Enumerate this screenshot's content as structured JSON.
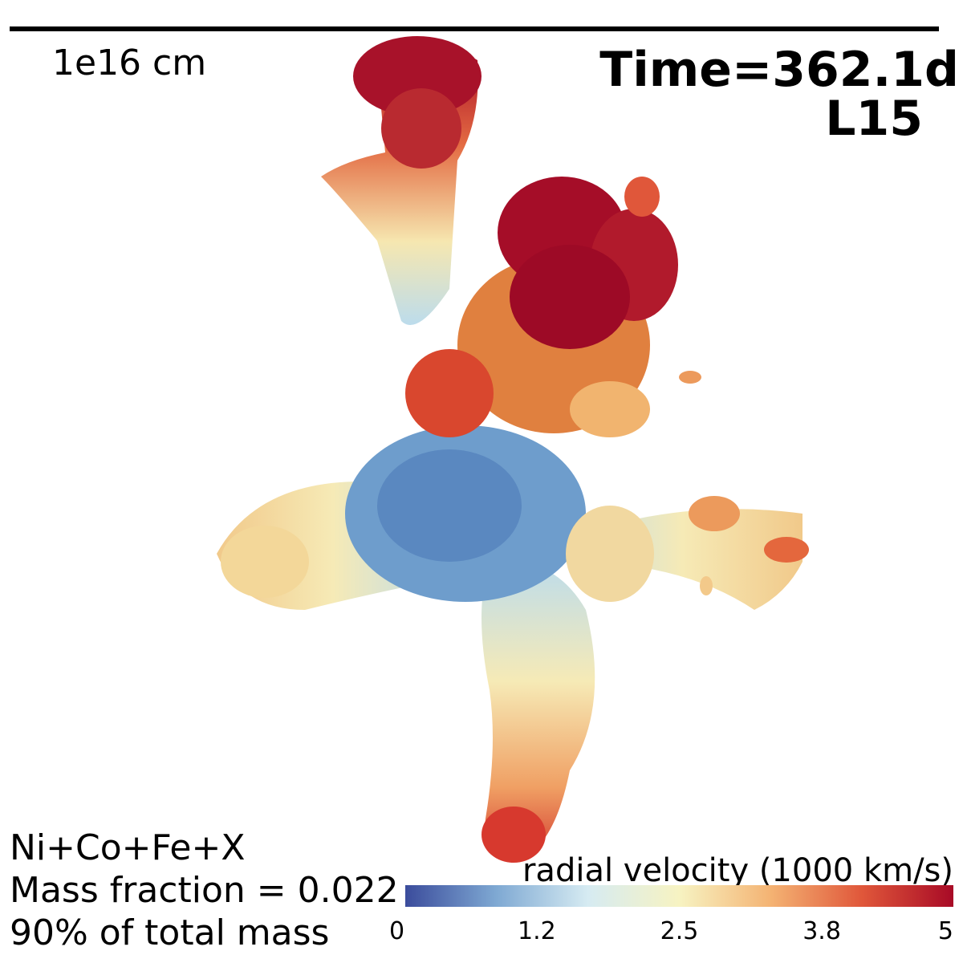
{
  "scale_bar": {
    "label": "1e16 cm"
  },
  "header": {
    "time": "Time=362.1d",
    "model": "L15"
  },
  "annotation": {
    "lines": [
      "Ni+Co+Fe+X",
      "Mass fraction = 0.022",
      "90% of total mass"
    ]
  },
  "colorbar": {
    "title": "radial velocity (1000 km/s)",
    "range": [
      0,
      5
    ],
    "ticks": [
      0,
      1.2,
      2.5,
      3.8,
      5
    ],
    "colors": [
      "#3b4c9c",
      "#7fa9d3",
      "#d6ebf2",
      "#f7f3c2",
      "#f4b373",
      "#e0573a",
      "#a80a26"
    ]
  }
}
